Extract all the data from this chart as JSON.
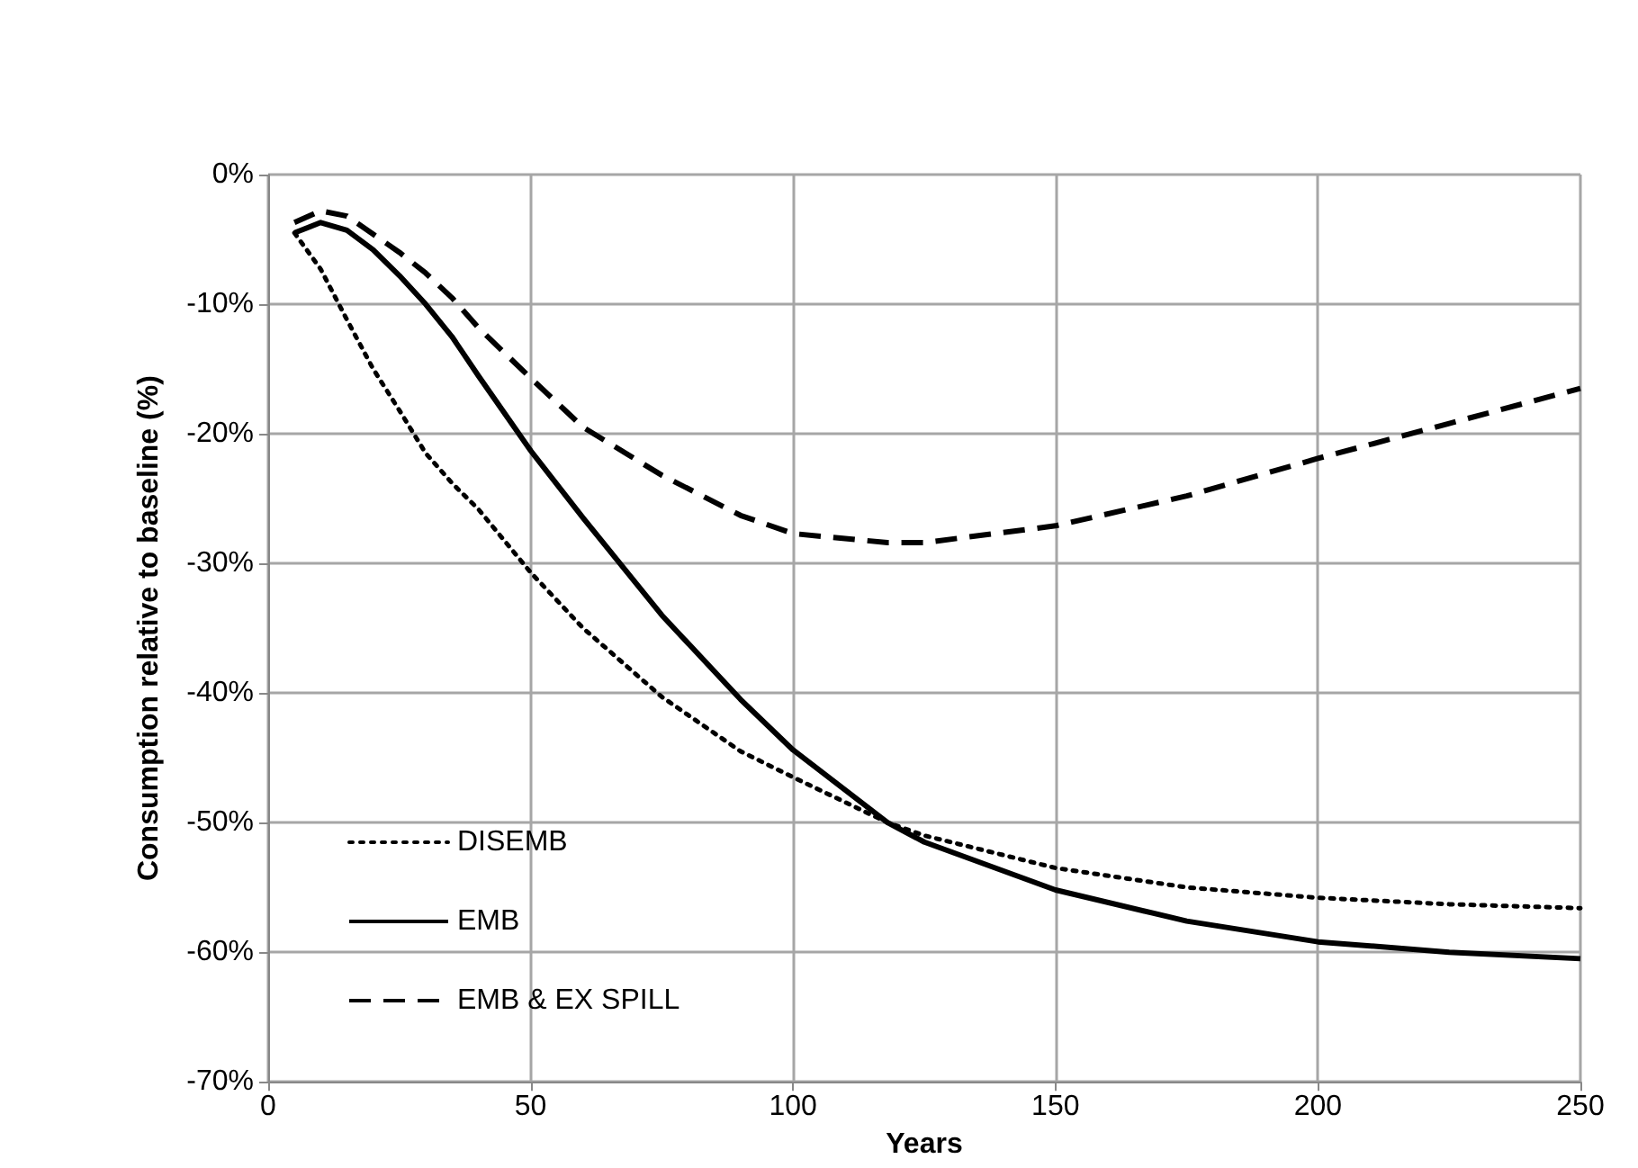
{
  "chart_data": {
    "type": "line",
    "xlabel": "Years",
    "ylabel": "Consumption relative to baseline (%)",
    "x": [
      5,
      10,
      15,
      20,
      25,
      30,
      35,
      40,
      50,
      60,
      75,
      90,
      100,
      118,
      125,
      150,
      175,
      200,
      225,
      250
    ],
    "series": [
      {
        "name": "DISEMB",
        "color": "#000000",
        "line_style": "dotted",
        "values": [
          -4.5,
          -7.3,
          -11.2,
          -15,
          -18.2,
          -21.5,
          -23.8,
          -25.8,
          -30.7,
          -35,
          -40.3,
          -44.5,
          -46.5,
          -50,
          -51,
          -53.5,
          -55,
          -55.8,
          -56.3,
          -56.6
        ]
      },
      {
        "name": "EMB",
        "color": "#000000",
        "line_style": "solid",
        "values": [
          -4.5,
          -3.7,
          -4.3,
          -5.8,
          -7.8,
          -10,
          -12.5,
          -15.5,
          -21.3,
          -26.5,
          -34,
          -40.5,
          -44.4,
          -50,
          -51.5,
          -55.2,
          -57.6,
          -59.2,
          -60,
          -60.5
        ]
      },
      {
        "name": "EMB & EX SPILL",
        "color": "#000000",
        "line_style": "dashed",
        "values": [
          -3.7,
          -2.8,
          -3.2,
          -4.6,
          -6,
          -7.6,
          -9.5,
          -11.8,
          -15.7,
          -19.5,
          -23.2,
          -26.3,
          -27.7,
          -28.4,
          -28.4,
          -27.1,
          -24.8,
          -21.9,
          -19.2,
          -16.5
        ]
      }
    ],
    "xlim": [
      0,
      250
    ],
    "xticks": [
      0,
      50,
      100,
      150,
      200,
      250
    ],
    "ylim": [
      -70,
      0
    ],
    "yticks": [
      {
        "value": -70,
        "label": "-70%"
      },
      {
        "value": -60,
        "label": "-60%"
      },
      {
        "value": -50,
        "label": "-50%"
      },
      {
        "value": -40,
        "label": "-40%"
      },
      {
        "value": -30,
        "label": "-30%"
      },
      {
        "value": -20,
        "label": "-20%"
      },
      {
        "value": -10,
        "label": "-10%"
      },
      {
        "value": 0,
        "label": "0%"
      }
    ],
    "grid": true,
    "legend": "bottom left",
    "marker": "none"
  }
}
